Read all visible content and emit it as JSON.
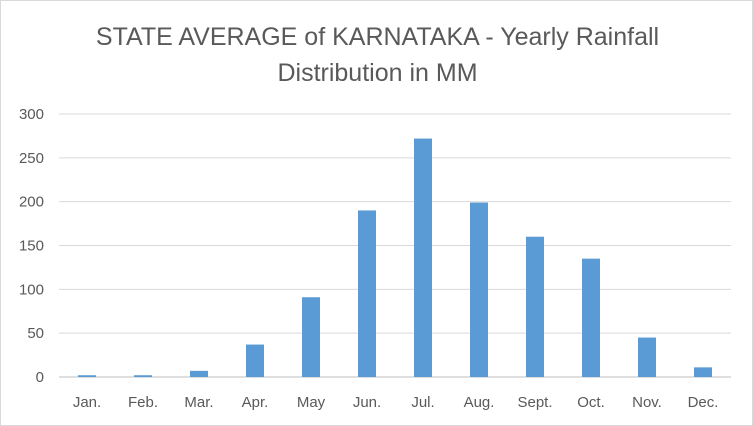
{
  "chart_data": {
    "type": "bar",
    "title_lines": [
      "STATE AVERAGE of KARNATAKA - Yearly Rainfall",
      "Distribution in MM"
    ],
    "categories": [
      "Jan.",
      "Feb.",
      "Mar.",
      "Apr.",
      "May",
      "Jun.",
      "Jul.",
      "Aug.",
      "Sept.",
      "Oct.",
      "Nov.",
      "Dec."
    ],
    "values": [
      2,
      2,
      7,
      37,
      91,
      190,
      272,
      199,
      160,
      135,
      45,
      11
    ],
    "ylim": [
      0,
      300
    ],
    "yticks": [
      0,
      50,
      100,
      150,
      200,
      250,
      300
    ],
    "xlabel": "",
    "ylabel": "",
    "grid": true,
    "legend": "none",
    "bar_color": "#5b9bd5"
  }
}
